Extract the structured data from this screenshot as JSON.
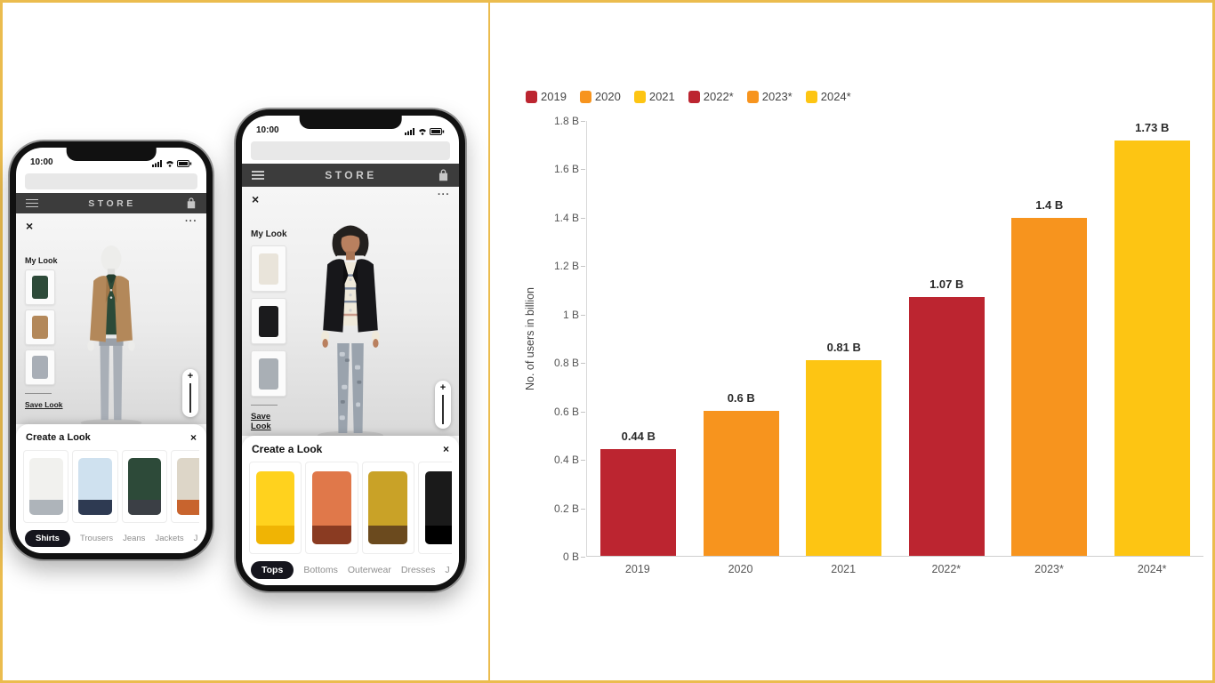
{
  "page": {
    "frame_color": "#EBBC4E"
  },
  "phones": [
    {
      "status_time": "10:00",
      "store_title": "STORE",
      "close_label": "×",
      "more_label": "···",
      "my_look_label": "My Look",
      "save_look_label": "Save Look",
      "zoom_plus_label": "+",
      "create_look_label": "Create a Look",
      "sheet_close_label": "×",
      "my_look_items": [
        {
          "name": "green-polo-thumb",
          "color": "#2d4a39"
        },
        {
          "name": "tan-jacket-thumb",
          "color": "#b3885a"
        },
        {
          "name": "gray-trousers-thumb",
          "color": "#a8aeb6"
        }
      ],
      "products": [
        {
          "name": "white-shirt",
          "color": "#f1f1ee",
          "accent": "#aeb4ba"
        },
        {
          "name": "light-blue-shirt",
          "color": "#cfe1ef",
          "accent": "#2e3a52"
        },
        {
          "name": "green-polo",
          "color": "#2d4a39",
          "accent": "#3b3f45"
        },
        {
          "name": "patterned-shirt",
          "color": "#ddd6c8",
          "accent": "#c8642e"
        }
      ],
      "categories": [
        {
          "label": "Shirts",
          "active": true
        },
        {
          "label": "Trousers",
          "active": false
        },
        {
          "label": "Jeans",
          "active": false
        },
        {
          "label": "Jackets",
          "active": false
        },
        {
          "label": "J",
          "active": false
        }
      ]
    },
    {
      "status_time": "10:00",
      "store_title": "STORE",
      "close_label": "×",
      "more_label": "···",
      "my_look_label": "My Look",
      "save_look_label": "Save Look",
      "zoom_plus_label": "+",
      "create_look_label": "Create a Look",
      "sheet_close_label": "×",
      "my_look_items": [
        {
          "name": "striped-outfit-thumb",
          "color": "#e9e4da"
        },
        {
          "name": "black-jacket-thumb",
          "color": "#1b1b1d"
        },
        {
          "name": "gray-pants-thumb",
          "color": "#a9afb5"
        }
      ],
      "products": [
        {
          "name": "yellow-camisole",
          "color": "#ffd21e",
          "accent": "#f0b404"
        },
        {
          "name": "patterned-blouse",
          "color": "#e0784a",
          "accent": "#8a3b22"
        },
        {
          "name": "embellished-crop-top",
          "color": "#c9a227",
          "accent": "#6b4a1e"
        },
        {
          "name": "black-top",
          "color": "#1a1a1a",
          "accent": "#000000"
        }
      ],
      "categories": [
        {
          "label": "Tops",
          "active": true
        },
        {
          "label": "Bottoms",
          "active": false
        },
        {
          "label": "Outerwear",
          "active": false
        },
        {
          "label": "Dresses",
          "active": false
        },
        {
          "label": "J",
          "active": false
        }
      ]
    }
  ],
  "chart_data": {
    "type": "bar",
    "categories": [
      "2019",
      "2020",
      "2021",
      "2022*",
      "2023*",
      "2024*"
    ],
    "values": [
      0.44,
      0.6,
      0.81,
      1.07,
      1.4,
      1.73
    ],
    "value_labels": [
      "0.44 B",
      "0.6 B",
      "0.81 B",
      "1.07 B",
      "1.4 B",
      "1.73 B"
    ],
    "bar_colors": [
      "#BC2530",
      "#F7941E",
      "#FDC513",
      "#BC2530",
      "#F7941E",
      "#FDC513"
    ],
    "legend": [
      {
        "label": "2019",
        "color": "#BC2530"
      },
      {
        "label": "2020",
        "color": "#F7941E"
      },
      {
        "label": "2021",
        "color": "#FDC513"
      },
      {
        "label": "2022*",
        "color": "#BC2530"
      },
      {
        "label": "2023*",
        "color": "#F7941E"
      },
      {
        "label": "2024*",
        "color": "#FDC513"
      }
    ],
    "legend_position": "top-left",
    "title": "",
    "xlabel": "",
    "ylabel": "No. of users in billion",
    "ylim": [
      0,
      1.8
    ],
    "yticks": [
      "1.8 B",
      "1.6 B",
      "1.4 B",
      "1.2 B",
      "1 B",
      "0.8 B",
      "0.6 B",
      "0.4 B",
      "0.2 B",
      "0 B"
    ],
    "grid": false
  }
}
